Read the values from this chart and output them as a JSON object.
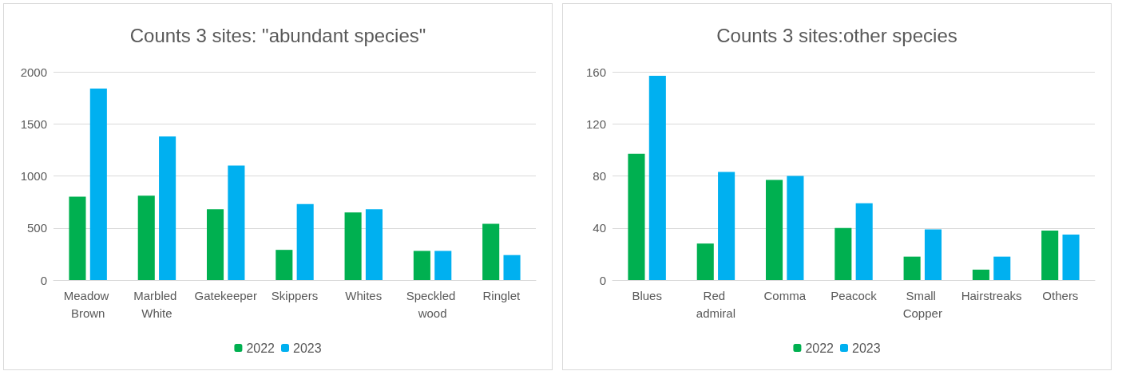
{
  "chart_data": [
    {
      "type": "bar",
      "title": "Counts 3 sites: \"abundant species\"",
      "categories": [
        "Meadow Brown",
        "Marbled White",
        "Gatekeeper",
        "Skippers",
        "Whites",
        "Speckled wood",
        "Ringlet"
      ],
      "series": [
        {
          "name": "2022",
          "color": "#00b050",
          "values": [
            800,
            810,
            680,
            290,
            650,
            280,
            540
          ]
        },
        {
          "name": "2023",
          "color": "#00b0f0",
          "values": [
            1840,
            1380,
            1100,
            730,
            680,
            280,
            240
          ]
        }
      ],
      "ylim": [
        0,
        2000
      ],
      "yticks": [
        0,
        500,
        1000,
        1500,
        2000
      ],
      "grid": "y",
      "legend": "bottom"
    },
    {
      "type": "bar",
      "title": "Counts 3 sites:other species",
      "categories": [
        "Blues",
        "Red admiral",
        "Comma",
        "Peacock",
        "Small Copper",
        "Hairstreaks",
        "Others"
      ],
      "series": [
        {
          "name": "2022",
          "color": "#00b050",
          "values": [
            97,
            28,
            77,
            40,
            18,
            8,
            38
          ]
        },
        {
          "name": "2023",
          "color": "#00b0f0",
          "values": [
            157,
            83,
            80,
            59,
            39,
            18,
            35
          ]
        }
      ],
      "ylim": [
        0,
        160
      ],
      "yticks": [
        0,
        40,
        80,
        120,
        160
      ],
      "grid": "y",
      "legend": "bottom"
    }
  ]
}
